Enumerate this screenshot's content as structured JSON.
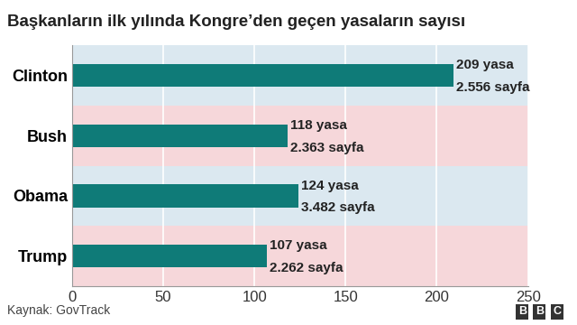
{
  "chart_data": {
    "type": "bar",
    "orientation": "horizontal",
    "title": "Başkanların ilk yılında Kongre’den geçen yasaların sayısı",
    "categories": [
      "Clinton",
      "Bush",
      "Obama",
      "Trump"
    ],
    "values": [
      209,
      118,
      124,
      107
    ],
    "value_labels": [
      "209 yasa",
      "118 yasa",
      "124 yasa",
      "107 yasa"
    ],
    "page_labels": [
      "2.556 sayfa",
      "2.363 sayfa",
      "3.482 sayfa",
      "2.262 sayfa"
    ],
    "data_labels": true,
    "color": "#0f7b78",
    "xlim": [
      0,
      250
    ],
    "xticks": [
      0,
      50,
      100,
      150,
      200,
      250
    ],
    "grid": true,
    "source": "Kaynak: GovTrack",
    "logo": "BBC"
  }
}
